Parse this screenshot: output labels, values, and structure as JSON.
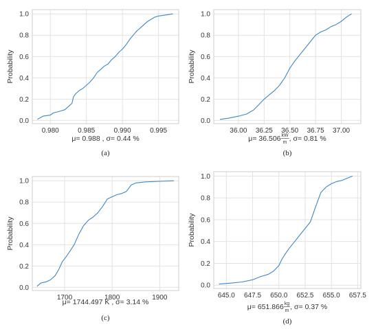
{
  "chart_data": [
    {
      "type": "line",
      "panel": "(a)",
      "ylabel": "Probability",
      "stat": {
        "pre": "μ= 0.988  , σ= 0.44 %",
        "unit_num": "",
        "unit_den": "",
        "post": ""
      },
      "xlim": [
        0.9775,
        0.9978
      ],
      "ylim": [
        -0.03,
        1.04
      ],
      "xticks": [
        0.98,
        0.985,
        0.99,
        0.995
      ],
      "xtick_labels": [
        "0.980",
        "0.985",
        "0.990",
        "0.995"
      ],
      "yticks": [
        0.0,
        0.2,
        0.4,
        0.6,
        0.8,
        1.0
      ],
      "ytick_labels": [
        "0.0",
        "0.2",
        "0.4",
        "0.6",
        "0.8",
        "1.0"
      ],
      "x": [
        0.9782,
        0.979,
        0.98,
        0.9804,
        0.981,
        0.9815,
        0.982,
        0.9825,
        0.983,
        0.9832,
        0.9835,
        0.984,
        0.9845,
        0.985,
        0.9855,
        0.986,
        0.9865,
        0.987,
        0.9875,
        0.988,
        0.9885,
        0.989,
        0.9895,
        0.99,
        0.9905,
        0.991,
        0.9915,
        0.992,
        0.9925,
        0.993,
        0.9935,
        0.994,
        0.9945,
        0.995,
        0.996,
        0.997
      ],
      "y": [
        0.01,
        0.04,
        0.05,
        0.07,
        0.08,
        0.09,
        0.1,
        0.13,
        0.16,
        0.22,
        0.25,
        0.28,
        0.3,
        0.33,
        0.36,
        0.4,
        0.45,
        0.48,
        0.51,
        0.53,
        0.57,
        0.6,
        0.64,
        0.67,
        0.71,
        0.76,
        0.8,
        0.84,
        0.87,
        0.9,
        0.93,
        0.95,
        0.97,
        0.98,
        0.99,
        1.0
      ]
    },
    {
      "type": "line",
      "panel": "(b)",
      "ylabel": "Probability",
      "stat": {
        "pre": "μ= 36.506 ",
        "unit_num": "kW",
        "unit_den": "m",
        "post": " , σ= 0.81 %"
      },
      "xlim": [
        35.76,
        37.19
      ],
      "ylim": [
        -0.03,
        1.04
      ],
      "xticks": [
        36.0,
        36.25,
        36.5,
        36.75,
        37.0
      ],
      "xtick_labels": [
        "36.00",
        "36.25",
        "36.50",
        "36.75",
        "37.00"
      ],
      "yticks": [
        0.0,
        0.2,
        0.4,
        0.6,
        0.8,
        1.0
      ],
      "ytick_labels": [
        "0.0",
        "0.2",
        "0.4",
        "0.6",
        "0.8",
        "1.0"
      ],
      "x": [
        35.82,
        35.9,
        36.0,
        36.08,
        36.15,
        36.2,
        36.25,
        36.3,
        36.35,
        36.4,
        36.45,
        36.5,
        36.55,
        36.6,
        36.65,
        36.7,
        36.75,
        36.8,
        36.85,
        36.9,
        36.95,
        37.0,
        37.05,
        37.1
      ],
      "y": [
        0.01,
        0.02,
        0.04,
        0.06,
        0.1,
        0.15,
        0.2,
        0.24,
        0.28,
        0.33,
        0.4,
        0.49,
        0.56,
        0.62,
        0.68,
        0.74,
        0.8,
        0.83,
        0.85,
        0.88,
        0.9,
        0.93,
        0.97,
        1.0
      ]
    },
    {
      "type": "line",
      "panel": "(c)",
      "ylabel": "Probability",
      "stat": {
        "pre": "μ= 1744.497 K , σ= 3.14 %",
        "unit_num": "",
        "unit_den": "",
        "post": ""
      },
      "xlim": [
        1632,
        1940
      ],
      "ylim": [
        -0.03,
        1.04
      ],
      "xticks": [
        1700,
        1800,
        1900
      ],
      "xtick_labels": [
        "1700",
        "1800",
        "1900"
      ],
      "yticks": [
        0.0,
        0.2,
        0.4,
        0.6,
        0.8,
        1.0
      ],
      "ytick_labels": [
        "0.0",
        "0.2",
        "0.4",
        "0.6",
        "0.8",
        "1.0"
      ],
      "x": [
        1642,
        1650,
        1660,
        1670,
        1680,
        1688,
        1695,
        1702,
        1710,
        1720,
        1730,
        1740,
        1750,
        1760,
        1770,
        1780,
        1790,
        1800,
        1810,
        1820,
        1830,
        1840,
        1850,
        1870,
        1900,
        1930
      ],
      "y": [
        0.01,
        0.04,
        0.05,
        0.07,
        0.11,
        0.17,
        0.24,
        0.28,
        0.33,
        0.4,
        0.5,
        0.58,
        0.63,
        0.66,
        0.7,
        0.76,
        0.83,
        0.85,
        0.87,
        0.88,
        0.9,
        0.96,
        0.98,
        0.99,
        0.995,
        1.0
      ]
    },
    {
      "type": "line",
      "panel": "(d)",
      "ylabel": "Probability",
      "stat": {
        "pre": "μ= 651.866 ",
        "unit_num": "kg",
        "unit_den": "m",
        "post": " , σ= 0.37 %"
      },
      "xlim": [
        643.8,
        657.8
      ],
      "ylim": [
        -0.03,
        1.04
      ],
      "xticks": [
        645.0,
        647.5,
        650.0,
        652.5,
        655.0,
        657.5
      ],
      "xtick_labels": [
        "645.0",
        "647.5",
        "650.0",
        "652.5",
        "655.0",
        "657.5"
      ],
      "yticks": [
        0.0,
        0.2,
        0.4,
        0.6,
        0.8,
        1.0
      ],
      "ytick_labels": [
        "0.0",
        "0.2",
        "0.4",
        "0.6",
        "0.8",
        "1.0"
      ],
      "x": [
        644.3,
        645.5,
        646.5,
        647.5,
        648.3,
        649.0,
        649.5,
        650.0,
        650.3,
        650.7,
        651.0,
        651.5,
        652.0,
        652.5,
        653.0,
        653.5,
        654.0,
        654.5,
        655.0,
        655.5,
        656.0,
        656.5,
        657.0
      ],
      "y": [
        0.01,
        0.02,
        0.03,
        0.05,
        0.08,
        0.1,
        0.13,
        0.18,
        0.24,
        0.3,
        0.34,
        0.4,
        0.46,
        0.52,
        0.58,
        0.72,
        0.85,
        0.9,
        0.93,
        0.95,
        0.96,
        0.98,
        1.0
      ]
    }
  ]
}
